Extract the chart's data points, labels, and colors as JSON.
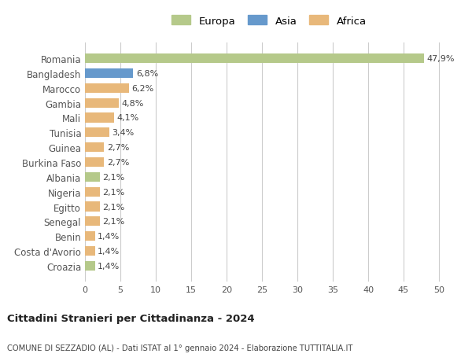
{
  "countries": [
    "Romania",
    "Bangladesh",
    "Marocco",
    "Gambia",
    "Mali",
    "Tunisia",
    "Guinea",
    "Burkina Faso",
    "Albania",
    "Nigeria",
    "Egitto",
    "Senegal",
    "Benin",
    "Costa d'Avorio",
    "Croazia"
  ],
  "values": [
    47.9,
    6.8,
    6.2,
    4.8,
    4.1,
    3.4,
    2.7,
    2.7,
    2.1,
    2.1,
    2.1,
    2.1,
    1.4,
    1.4,
    1.4
  ],
  "labels": [
    "47,9%",
    "6,8%",
    "6,2%",
    "4,8%",
    "4,1%",
    "3,4%",
    "2,7%",
    "2,7%",
    "2,1%",
    "2,1%",
    "2,1%",
    "2,1%",
    "1,4%",
    "1,4%",
    "1,4%"
  ],
  "continents": [
    "Europa",
    "Asia",
    "Africa",
    "Africa",
    "Africa",
    "Africa",
    "Africa",
    "Africa",
    "Europa",
    "Africa",
    "Africa",
    "Africa",
    "Africa",
    "Africa",
    "Europa"
  ],
  "colors": {
    "Europa": "#b5c98a",
    "Asia": "#6699cc",
    "Africa": "#e8b87a"
  },
  "legend": [
    "Europa",
    "Asia",
    "Africa"
  ],
  "title1": "Cittadini Stranieri per Cittadinanza - 2024",
  "title2": "COMUNE DI SEZZADIO (AL) - Dati ISTAT al 1° gennaio 2024 - Elaborazione TUTTITALIA.IT",
  "xlim": [
    0,
    52
  ],
  "xticks": [
    0,
    5,
    10,
    15,
    20,
    25,
    30,
    35,
    40,
    45,
    50
  ],
  "background_color": "#ffffff",
  "grid_color": "#cccccc"
}
